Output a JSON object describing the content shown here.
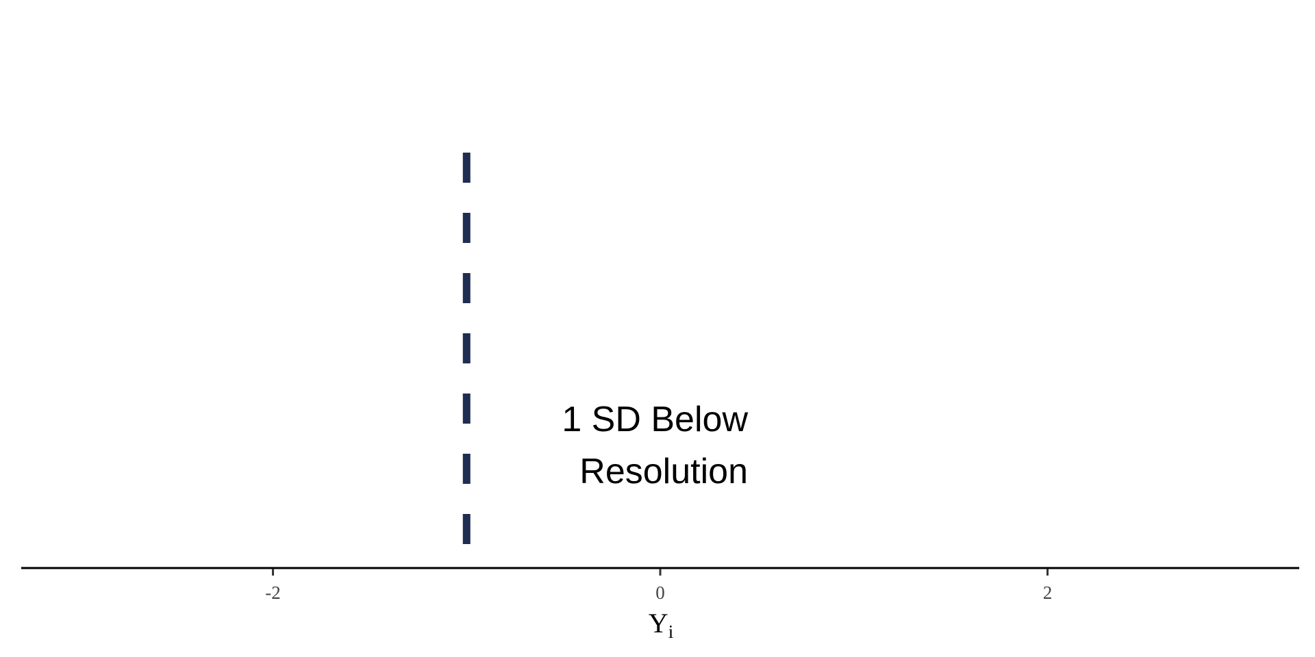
{
  "chart_data": {
    "type": "line",
    "title": "",
    "xlabel": "Y",
    "xlabel_subscript": "i",
    "ylabel": "",
    "xlim": [
      -3.3,
      3.3
    ],
    "xticks": [
      -2,
      0,
      2
    ],
    "xtick_labels": [
      "-2",
      "0",
      "2"
    ],
    "grid": false,
    "vlines": [
      {
        "x": -1,
        "style": "dashed",
        "color": "#1f2d52"
      }
    ],
    "annotations": [
      {
        "x": 0.0,
        "lines": [
          "1 SD Below",
          "Resolution"
        ],
        "align": "right"
      }
    ]
  }
}
